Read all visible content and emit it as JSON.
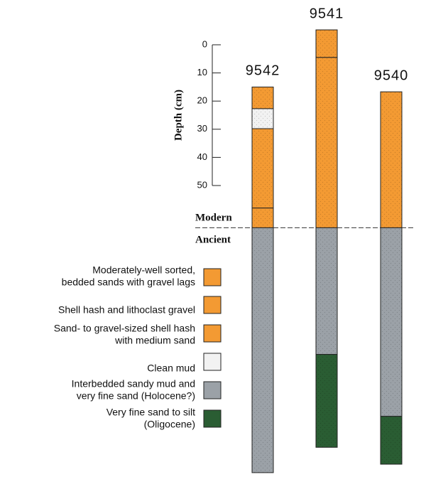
{
  "depth_axis": {
    "label": "Depth (cm)",
    "ticks": [
      0,
      10,
      20,
      30,
      40,
      50
    ]
  },
  "divider": {
    "upper": "Modern",
    "lower": "Ancient",
    "depth": 65
  },
  "facies": [
    {
      "lines": [
        "Moderately-well sorted,",
        "bedded sands with gravel lags"
      ],
      "color": "#f39a33"
    },
    {
      "lines": [
        "Shell hash and lithoclast gravel"
      ],
      "color": "#f39a33"
    },
    {
      "lines": [
        "Sand- to gravel-sized shell hash",
        "with medium sand"
      ],
      "color": "#f39a33"
    },
    {
      "lines": [
        "Clean mud"
      ],
      "color": "#f2f2f2"
    },
    {
      "lines": [
        "Interbedded sandy mud and",
        "very fine sand (Holocene?)"
      ],
      "color": "#9ba1a7"
    },
    {
      "lines": [
        "Very fine sand to silt",
        "(Oligocene)"
      ],
      "color": "#2a5d33"
    }
  ],
  "cores": [
    {
      "name": "9542",
      "layers": [
        {
          "top": 15,
          "bottom": 22.7,
          "facies": 0
        },
        {
          "top": 22.7,
          "bottom": 29.8,
          "facies": 3
        },
        {
          "top": 29.8,
          "bottom": 58,
          "facies": 2
        },
        {
          "top": 58,
          "bottom": 65,
          "facies": 1
        },
        {
          "top": 65,
          "bottom": 152,
          "facies": 4
        }
      ]
    },
    {
      "name": "9541",
      "layers": [
        {
          "top": -5.3,
          "bottom": 4.5,
          "facies": 1
        },
        {
          "top": 4.5,
          "bottom": 65,
          "facies": 2
        },
        {
          "top": 65,
          "bottom": 110,
          "facies": 4
        },
        {
          "top": 110,
          "bottom": 143,
          "facies": 5
        }
      ]
    },
    {
      "name": "9540",
      "layers": [
        {
          "top": 16.7,
          "bottom": 65,
          "facies": 2
        },
        {
          "top": 65,
          "bottom": 132,
          "facies": 4
        },
        {
          "top": 132,
          "bottom": 149,
          "facies": 5
        }
      ]
    }
  ]
}
